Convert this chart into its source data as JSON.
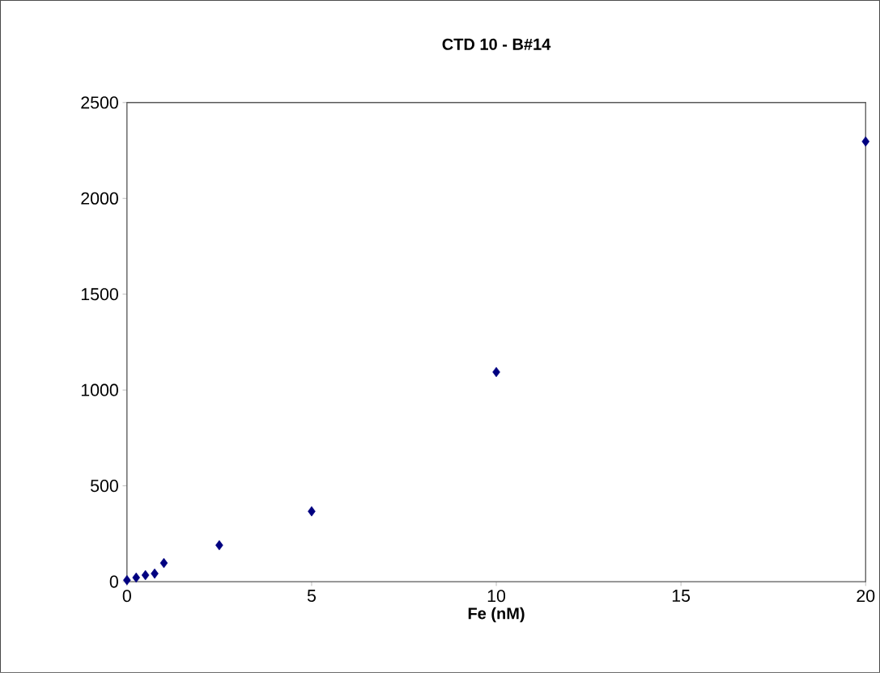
{
  "chart_data": {
    "type": "scatter",
    "title": "CTD 10 - B#14",
    "xlabel": "Fe (nM)",
    "x": [
      0,
      0.25,
      0.5,
      0.75,
      1,
      2.5,
      5,
      10,
      20
    ],
    "values": [
      8,
      21,
      34,
      42,
      97,
      190,
      367,
      1094,
      2297
    ],
    "color": "#000080",
    "marker": "diamond",
    "xlim": [
      0,
      20
    ],
    "xticks": [
      0,
      5,
      10,
      15,
      20
    ],
    "ylim": [
      0,
      2500
    ],
    "yticks": [
      0,
      500,
      1000,
      1500,
      2000,
      2500
    ],
    "grid": false
  }
}
